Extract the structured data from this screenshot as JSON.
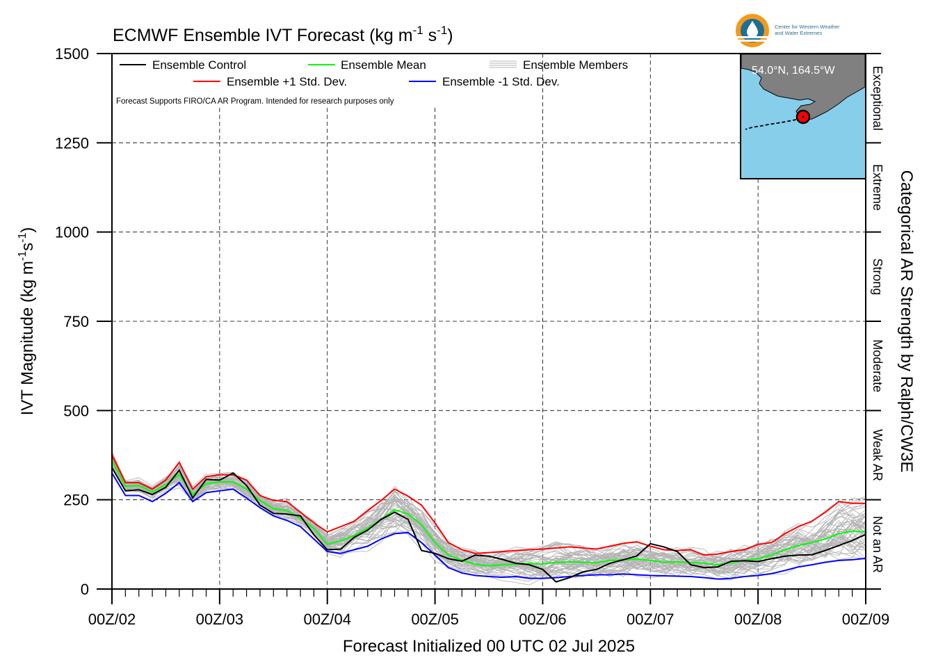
{
  "chart_data": {
    "type": "line",
    "title": "ECMWF Ensemble IVT Forecast (kg m",
    "title_units": [
      "-1",
      " s",
      "-1",
      ")"
    ],
    "xlabel": "Forecast Initialized 00 UTC 02 Jul 2025",
    "ylabel": "IVT Magnitude (kg m",
    "ylabel_units": [
      "-1",
      "s",
      "-1",
      ")"
    ],
    "right_axis_label": "Categorical AR Strength by Ralph/CW3E",
    "note": "Forecast Supports FIRO/CA AR Program. Intended for research purposes only",
    "ylim": [
      0,
      1500
    ],
    "y_ticks": [
      "0",
      "250",
      "500",
      "750",
      "1000",
      "1250",
      "1500"
    ],
    "x_ticks": [
      "00Z/02",
      "00Z/03",
      "00Z/04",
      "00Z/05",
      "00Z/06",
      "00Z/07",
      "00Z/08",
      "00Z/09"
    ],
    "x_range_steps": [
      0,
      56
    ],
    "x_step_hours": 3,
    "grid": true,
    "legend_position": "top-left",
    "categories_right": [
      "Not an AR",
      "Weak AR",
      "Moderate",
      "Strong",
      "Extreme",
      "Exceptional"
    ],
    "category_bounds": [
      0,
      250,
      500,
      750,
      1000,
      1250,
      1500
    ],
    "legend": {
      "control": "Ensemble Control",
      "mean": "Ensemble Mean",
      "members": "Ensemble Members",
      "plus": "Ensemble +1 Std. Dev.",
      "minus": "Ensemble -1 Std. Dev."
    },
    "colors": {
      "control": "#000000",
      "mean": "#00ff00",
      "members": "#b4b4b4",
      "plus": "#ff0000",
      "minus": "#0000ff",
      "ocean": "#87ceeb",
      "land": "#808080",
      "marker": "#ff0000"
    },
    "series": [
      {
        "name": "Ensemble Control",
        "values": [
          340,
          275,
          278,
          265,
          285,
          333,
          255,
          307,
          305,
          325,
          290,
          235,
          212,
          210,
          205,
          152,
          110,
          112,
          145,
          165,
          195,
          215,
          195,
          108,
          100,
          85,
          78,
          95,
          92,
          83,
          72,
          68,
          55,
          20,
          32,
          48,
          55,
          72,
          82,
          93,
          127,
          118,
          105,
          68,
          60,
          62,
          78,
          79,
          77,
          85,
          92,
          95,
          96,
          108,
          122,
          136,
          153
        ]
      },
      {
        "name": "Ensemble Mean",
        "values": [
          360,
          288,
          290,
          272,
          293,
          320,
          265,
          295,
          300,
          300,
          280,
          248,
          225,
          220,
          198,
          170,
          125,
          135,
          150,
          170,
          195,
          222,
          210,
          180,
          130,
          95,
          80,
          70,
          65,
          68,
          70,
          72,
          70,
          75,
          76,
          75,
          74,
          80,
          82,
          84,
          80,
          75,
          76,
          75,
          72,
          68,
          74,
          80,
          85,
          95,
          110,
          122,
          130,
          140,
          155,
          162,
          160
        ]
      },
      {
        "name": "Ensemble +1 Std. Dev.",
        "values": [
          375,
          298,
          298,
          280,
          305,
          355,
          280,
          315,
          320,
          320,
          305,
          262,
          248,
          245,
          215,
          185,
          160,
          175,
          190,
          220,
          248,
          280,
          260,
          235,
          185,
          130,
          110,
          100,
          102,
          105,
          108,
          110,
          112,
          115,
          118,
          115,
          112,
          120,
          128,
          132,
          120,
          110,
          108,
          110,
          95,
          98,
          105,
          110,
          125,
          130,
          155,
          175,
          190,
          215,
          245,
          240,
          240
        ]
      },
      {
        "name": "Ensemble -1 Std. Dev.",
        "values": [
          325,
          262,
          262,
          245,
          268,
          298,
          245,
          270,
          275,
          280,
          255,
          228,
          205,
          192,
          175,
          140,
          105,
          100,
          110,
          120,
          140,
          155,
          158,
          130,
          95,
          60,
          45,
          38,
          35,
          33,
          35,
          30,
          30,
          32,
          35,
          38,
          40,
          40,
          42,
          40,
          38,
          37,
          36,
          35,
          32,
          28,
          30,
          35,
          38,
          43,
          52,
          62,
          68,
          75,
          80,
          82,
          86
        ]
      }
    ],
    "members_count": 50,
    "map_inset": {
      "label": "54.0°N, 164.5°W",
      "lat": 54.0,
      "lon": -164.5
    },
    "logo": {
      "lines": [
        "Center for Western Weather",
        "and Water Extremes"
      ]
    }
  }
}
